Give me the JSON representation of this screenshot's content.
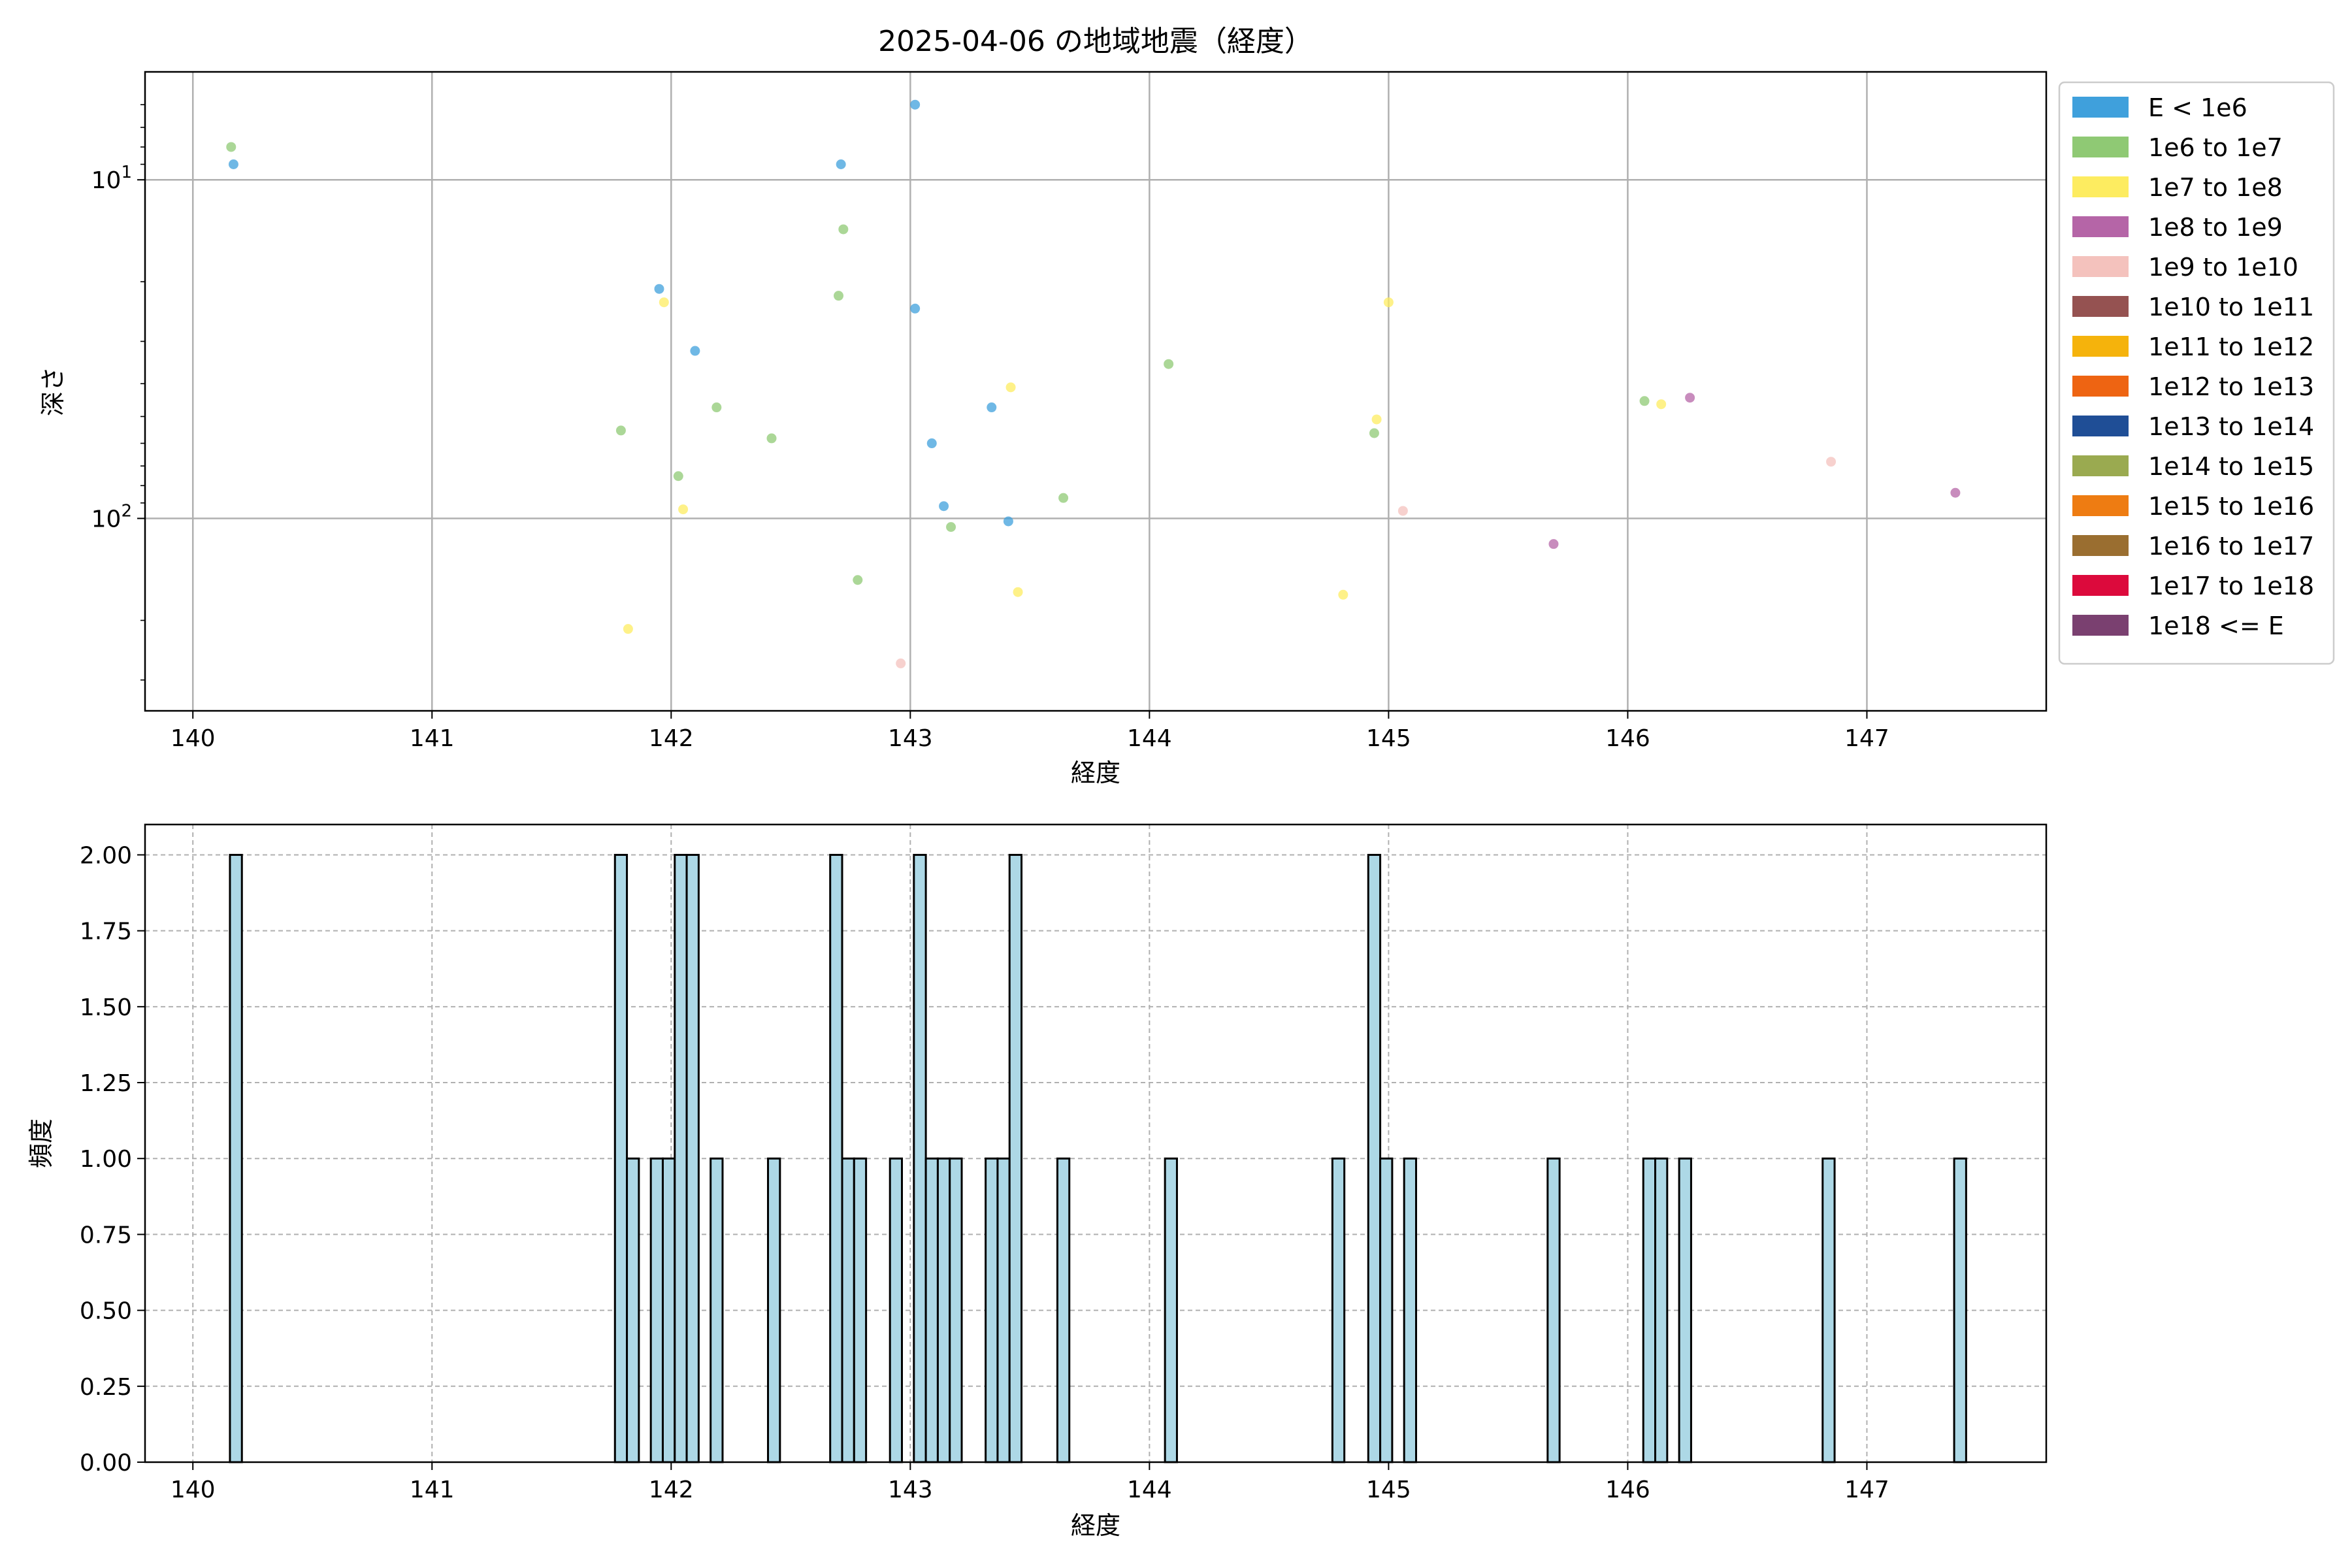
{
  "chart_data": [
    {
      "type": "scatter",
      "title": "2025-04-06 の地域地震（経度）",
      "xlabel": "経度",
      "ylabel": "深さ",
      "xlim": [
        139.8,
        147.75
      ],
      "ylim": [
        370,
        4.8
      ],
      "y_scale": "log",
      "y_inverted": true,
      "x_ticks": [
        140,
        141,
        142,
        143,
        144,
        145,
        146,
        147
      ],
      "y_ticks": [
        {
          "value": 10,
          "base": "10",
          "exp": "1"
        },
        {
          "value": 100,
          "base": "10",
          "exp": "2"
        }
      ],
      "grid": true,
      "legend_position": "outside-right",
      "legend": [
        {
          "label": "E < 1e6",
          "color": "#3fa0dc"
        },
        {
          "label": "1e6 to 1e7",
          "color": "#8fc974"
        },
        {
          "label": "1e7 to 1e8",
          "color": "#fdec60"
        },
        {
          "label": "1e8 to 1e9",
          "color": "#b565a7"
        },
        {
          "label": "1e9 to 1e10",
          "color": "#f4c2bd"
        },
        {
          "label": "1e10 to 1e11",
          "color": "#955251"
        },
        {
          "label": "1e11 to 1e12",
          "color": "#f5b30c"
        },
        {
          "label": "1e12 to 1e13",
          "color": "#ee6412"
        },
        {
          "label": "1e13 to 1e14",
          "color": "#1f4e96"
        },
        {
          "label": "1e14 to 1e15",
          "color": "#9aaa50"
        },
        {
          "label": "1e15 to 1e16",
          "color": "#ee7c12"
        },
        {
          "label": "1e16 to 1e17",
          "color": "#9a6e30"
        },
        {
          "label": "1e17 to 1e18",
          "color": "#dc0a3c"
        },
        {
          "label": "1e18 <= E",
          "color": "#7a4070"
        }
      ],
      "series": [
        {
          "category": 0,
          "points": [
            [
              140.17,
              9
            ],
            [
              141.95,
              21
            ],
            [
              142.1,
              32
            ],
            [
              142.71,
              9
            ],
            [
              143.02,
              6
            ],
            [
              143.02,
              24
            ],
            [
              143.09,
              60
            ],
            [
              143.14,
              92
            ],
            [
              143.34,
              47
            ],
            [
              143.41,
              102
            ]
          ]
        },
        {
          "category": 1,
          "points": [
            [
              140.16,
              8
            ],
            [
              141.79,
              55
            ],
            [
              142.03,
              75
            ],
            [
              142.19,
              47
            ],
            [
              142.42,
              58
            ],
            [
              142.7,
              22
            ],
            [
              142.72,
              14
            ],
            [
              142.78,
              152
            ],
            [
              143.17,
              106
            ],
            [
              143.64,
              87
            ],
            [
              144.08,
              35
            ],
            [
              144.94,
              56
            ],
            [
              146.07,
              45
            ]
          ]
        },
        {
          "category": 2,
          "points": [
            [
              141.82,
              212
            ],
            [
              141.97,
              23
            ],
            [
              142.05,
              94
            ],
            [
              143.42,
              41
            ],
            [
              143.45,
              165
            ],
            [
              144.81,
              168
            ],
            [
              144.95,
              51
            ],
            [
              145.0,
              23
            ],
            [
              146.14,
              46
            ]
          ]
        },
        {
          "category": 3,
          "points": [
            [
              145.69,
              119
            ],
            [
              146.26,
              44
            ],
            [
              147.37,
              84
            ]
          ]
        },
        {
          "category": 4,
          "points": [
            [
              142.96,
              268
            ],
            [
              145.06,
              95
            ],
            [
              146.85,
              68
            ]
          ]
        }
      ]
    },
    {
      "type": "bar",
      "title": "",
      "xlabel": "経度",
      "ylabel": "頻度",
      "xlim": [
        139.8,
        147.75
      ],
      "ylim": [
        0,
        2.1
      ],
      "x_ticks": [
        140,
        141,
        142,
        143,
        144,
        145,
        146,
        147
      ],
      "y_ticks": [
        "0.00",
        "0.25",
        "0.50",
        "0.75",
        "1.00",
        "1.25",
        "1.50",
        "1.75",
        "2.00"
      ],
      "grid": "dashed",
      "bar_color": "#add8e6",
      "bar_edge": "#000000",
      "bins": [
        {
          "x": 140.18,
          "count": 2
        },
        {
          "x": 141.79,
          "count": 2
        },
        {
          "x": 141.84,
          "count": 1
        },
        {
          "x": 141.94,
          "count": 1
        },
        {
          "x": 141.99,
          "count": 1
        },
        {
          "x": 142.04,
          "count": 2
        },
        {
          "x": 142.09,
          "count": 2
        },
        {
          "x": 142.19,
          "count": 1
        },
        {
          "x": 142.43,
          "count": 1
        },
        {
          "x": 142.69,
          "count": 2
        },
        {
          "x": 142.74,
          "count": 1
        },
        {
          "x": 142.79,
          "count": 1
        },
        {
          "x": 142.94,
          "count": 1
        },
        {
          "x": 143.04,
          "count": 2
        },
        {
          "x": 143.09,
          "count": 1
        },
        {
          "x": 143.14,
          "count": 1
        },
        {
          "x": 143.19,
          "count": 1
        },
        {
          "x": 143.34,
          "count": 1
        },
        {
          "x": 143.39,
          "count": 1
        },
        {
          "x": 143.44,
          "count": 2
        },
        {
          "x": 143.64,
          "count": 1
        },
        {
          "x": 144.09,
          "count": 1
        },
        {
          "x": 144.79,
          "count": 1
        },
        {
          "x": 144.94,
          "count": 2
        },
        {
          "x": 144.99,
          "count": 1
        },
        {
          "x": 145.09,
          "count": 1
        },
        {
          "x": 145.69,
          "count": 1
        },
        {
          "x": 146.09,
          "count": 1
        },
        {
          "x": 146.14,
          "count": 1
        },
        {
          "x": 146.24,
          "count": 1
        },
        {
          "x": 146.84,
          "count": 1
        },
        {
          "x": 147.39,
          "count": 1
        }
      ]
    }
  ]
}
